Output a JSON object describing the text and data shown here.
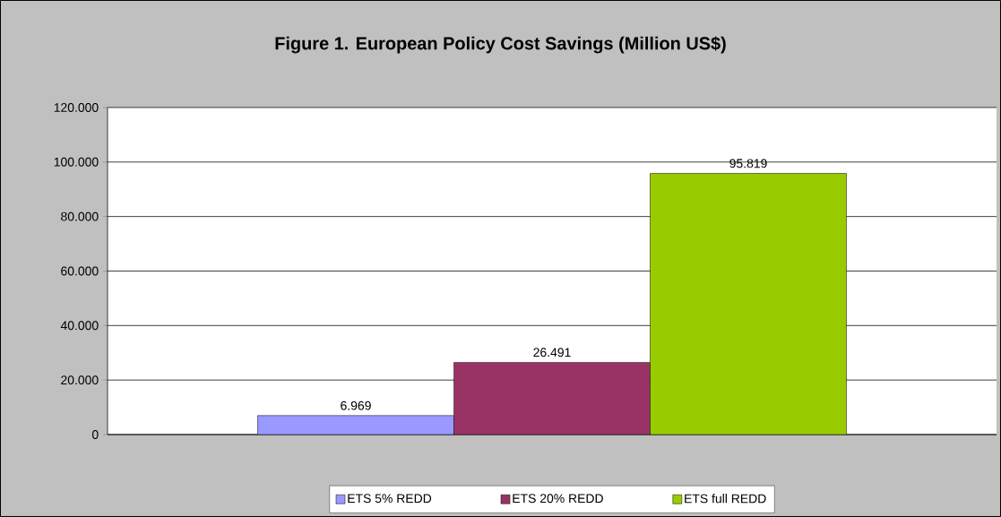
{
  "chart_data": {
    "type": "bar",
    "title": "Figure 1. European Policy Cost Savings (Million US$)",
    "categories": [
      null
    ],
    "series": [
      {
        "name": "ETS 5% REDD",
        "color": "#9999ff",
        "values": [
          6969
        ],
        "value_labels": [
          "6.969"
        ]
      },
      {
        "name": "ETS 20% REDD",
        "color": "#993366",
        "values": [
          26491
        ],
        "value_labels": [
          "26.491"
        ]
      },
      {
        "name": "ETS full REDD",
        "color": "#99cc00",
        "values": [
          95819
        ],
        "value_labels": [
          "95.819"
        ]
      }
    ],
    "ylim": [
      0,
      120000
    ],
    "yticks": [
      {
        "value": 0,
        "label": "0"
      },
      {
        "value": 20000,
        "label": "20.000"
      },
      {
        "value": 40000,
        "label": "40.000"
      },
      {
        "value": 60000,
        "label": "60.000"
      },
      {
        "value": 80000,
        "label": "80.000"
      },
      {
        "value": 100000,
        "label": "100.000"
      },
      {
        "value": 120000,
        "label": "120.000"
      }
    ],
    "grid": "y",
    "legend": "bottom"
  }
}
